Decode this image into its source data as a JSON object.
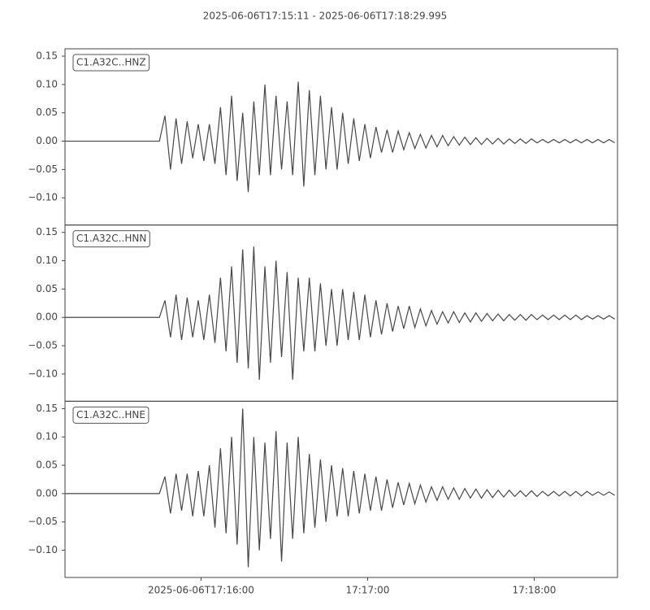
{
  "chart_data": {
    "type": "line",
    "subplots": true,
    "title": "2025-06-06T17:15:11  -  2025-06-06T17:18:29.995",
    "xlim": [
      "17:15:11",
      "17:18:29.995"
    ],
    "xticks": [
      {
        "value": "17:16:00",
        "label": "2025-06-06T17:16:00"
      },
      "17:17:00",
      "17:18:00"
    ],
    "ylim": [
      -0.148,
      0.163
    ],
    "yticks": [
      {
        "value": -0.1,
        "label": "−0.10"
      },
      {
        "value": -0.05,
        "label": "−0.05"
      },
      {
        "value": 0,
        "label": "0.00"
      },
      {
        "value": 0.05,
        "label": "0.05"
      },
      {
        "value": 0.1,
        "label": "0.10"
      },
      {
        "value": 0.15,
        "label": "0.15"
      }
    ],
    "x": [
      "17:15:11",
      "17:15:13",
      "17:15:15",
      "17:15:17",
      "17:15:19",
      "17:15:21",
      "17:15:23",
      "17:15:25",
      "17:15:27",
      "17:15:29",
      "17:15:31",
      "17:15:33",
      "17:15:35",
      "17:15:37",
      "17:15:39",
      "17:15:41",
      "17:15:43",
      "17:15:45",
      "17:15:47",
      "17:15:49",
      "17:15:51",
      "17:15:53",
      "17:15:55",
      "17:15:57",
      "17:15:59",
      "17:16:01",
      "17:16:03",
      "17:16:05",
      "17:16:07",
      "17:16:09",
      "17:16:11",
      "17:16:13",
      "17:16:15",
      "17:16:17",
      "17:16:19",
      "17:16:21",
      "17:16:23",
      "17:16:25",
      "17:16:27",
      "17:16:29",
      "17:16:31",
      "17:16:33",
      "17:16:35",
      "17:16:37",
      "17:16:39",
      "17:16:41",
      "17:16:43",
      "17:16:45",
      "17:16:47",
      "17:16:49",
      "17:16:51",
      "17:16:53",
      "17:16:55",
      "17:16:57",
      "17:16:59",
      "17:17:01",
      "17:17:03",
      "17:17:05",
      "17:17:07",
      "17:17:09",
      "17:17:11",
      "17:17:13",
      "17:17:15",
      "17:17:17",
      "17:17:19",
      "17:17:21",
      "17:17:23",
      "17:17:25",
      "17:17:27",
      "17:17:29",
      "17:17:31",
      "17:17:33",
      "17:17:35",
      "17:17:37",
      "17:17:39",
      "17:17:41",
      "17:17:43",
      "17:17:45",
      "17:17:47",
      "17:17:49",
      "17:17:51",
      "17:17:53",
      "17:17:55",
      "17:17:57",
      "17:17:59",
      "17:18:01",
      "17:18:03",
      "17:18:05",
      "17:18:07",
      "17:18:09",
      "17:18:11",
      "17:18:13",
      "17:18:15",
      "17:18:17",
      "17:18:19",
      "17:18:21",
      "17:18:23",
      "17:18:25",
      "17:18:27",
      "17:18:29"
    ],
    "series": [
      {
        "name": "C1.A32C..HNZ",
        "color": "#474747",
        "values": [
          0,
          0,
          0,
          0,
          0,
          0,
          0,
          0,
          0,
          0,
          0,
          0,
          0,
          0,
          0,
          0,
          0,
          0,
          0.045,
          -0.05,
          0.04,
          -0.04,
          0.035,
          -0.03,
          0.03,
          -0.035,
          0.03,
          -0.04,
          0.06,
          -0.06,
          0.08,
          -0.07,
          0.05,
          -0.09,
          0.07,
          -0.06,
          0.1,
          -0.06,
          0.08,
          -0.05,
          0.07,
          -0.06,
          0.105,
          -0.08,
          0.09,
          -0.06,
          0.08,
          -0.05,
          0.06,
          -0.05,
          0.05,
          -0.04,
          0.04,
          -0.035,
          0.03,
          -0.03,
          0.025,
          -0.02,
          0.02,
          -0.02,
          0.018,
          -0.015,
          0.015,
          -0.013,
          0.012,
          -0.012,
          0.01,
          -0.01,
          0.01,
          -0.008,
          0.008,
          -0.007,
          0.007,
          -0.006,
          0.006,
          -0.006,
          0.005,
          -0.005,
          0.005,
          -0.005,
          0.004,
          -0.004,
          0.004,
          -0.004,
          0.004,
          -0.003,
          0.003,
          -0.003,
          0.003,
          -0.003,
          0.003,
          -0.003,
          0.003,
          -0.003,
          0.003,
          -0.003,
          0.003,
          -0.003,
          0.003,
          -0.003
        ]
      },
      {
        "name": "C1.A32C..HNN",
        "color": "#474747",
        "values": [
          0,
          0,
          0,
          0,
          0,
          0,
          0,
          0,
          0,
          0,
          0,
          0,
          0,
          0,
          0,
          0,
          0,
          0,
          0.03,
          -0.035,
          0.04,
          -0.04,
          0.035,
          -0.035,
          0.03,
          -0.04,
          0.04,
          -0.045,
          0.07,
          -0.06,
          0.09,
          -0.08,
          0.12,
          -0.09,
          0.125,
          -0.11,
          0.09,
          -0.08,
          0.1,
          -0.07,
          0.08,
          -0.11,
          0.07,
          -0.06,
          0.07,
          -0.06,
          0.06,
          -0.05,
          0.05,
          -0.05,
          0.05,
          -0.04,
          0.045,
          -0.04,
          0.04,
          -0.035,
          0.03,
          -0.03,
          0.025,
          -0.025,
          0.02,
          -0.02,
          0.02,
          -0.018,
          0.015,
          -0.015,
          0.012,
          -0.012,
          0.01,
          -0.01,
          0.01,
          -0.009,
          0.008,
          -0.008,
          0.008,
          -0.007,
          0.007,
          -0.006,
          0.006,
          -0.006,
          0.005,
          -0.005,
          0.005,
          -0.005,
          0.005,
          -0.004,
          0.004,
          -0.004,
          0.004,
          -0.004,
          0.004,
          -0.004,
          0.004,
          -0.004,
          0.003,
          -0.003,
          0.003,
          -0.003,
          0.003,
          -0.003
        ]
      },
      {
        "name": "C1.A32C..HNE",
        "color": "#474747",
        "values": [
          0,
          0,
          0,
          0,
          0,
          0,
          0,
          0,
          0,
          0,
          0,
          0,
          0,
          0,
          0,
          0,
          0,
          0,
          0.03,
          -0.035,
          0.035,
          -0.03,
          0.035,
          -0.04,
          0.04,
          -0.04,
          0.05,
          -0.06,
          0.08,
          -0.07,
          0.1,
          -0.09,
          0.15,
          -0.13,
          0.1,
          -0.1,
          0.09,
          -0.08,
          0.11,
          -0.12,
          0.09,
          -0.08,
          0.1,
          -0.07,
          0.07,
          -0.06,
          0.06,
          -0.05,
          0.05,
          -0.04,
          0.045,
          -0.04,
          0.04,
          -0.035,
          0.035,
          -0.03,
          0.03,
          -0.03,
          0.025,
          -0.025,
          0.02,
          -0.02,
          0.018,
          -0.018,
          0.015,
          -0.015,
          0.012,
          -0.012,
          0.012,
          -0.01,
          0.01,
          -0.01,
          0.009,
          -0.008,
          0.008,
          -0.008,
          0.007,
          -0.007,
          0.006,
          -0.006,
          0.006,
          -0.005,
          0.005,
          -0.005,
          0.005,
          -0.005,
          0.004,
          -0.004,
          0.004,
          -0.004,
          0.004,
          -0.004,
          0.004,
          -0.004,
          0.004,
          -0.003,
          0.003,
          -0.003,
          0.003,
          -0.003
        ]
      }
    ]
  }
}
